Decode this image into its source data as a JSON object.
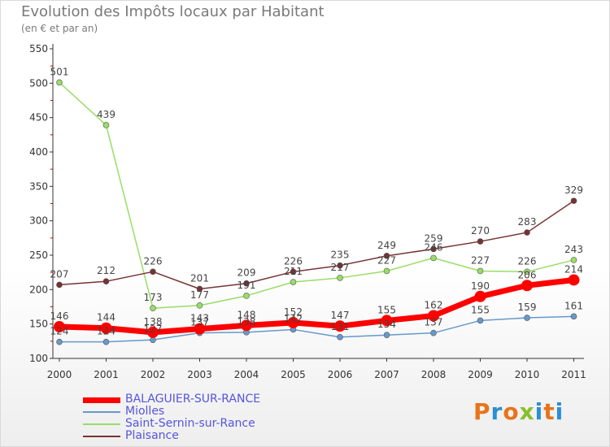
{
  "header": {
    "title": "Evolution des Impôts locaux par Habitant",
    "subtitle": "(en € et par an)"
  },
  "logo": {
    "text": "Proxiti",
    "colors": [
      "#e8731a",
      "#2a8fd4",
      "#e8731a",
      "#89bf2a",
      "#2a8fd4",
      "#e8731a",
      "#2a8fd4"
    ]
  },
  "chart_data": {
    "type": "line",
    "x": [
      "2000",
      "2001",
      "2002",
      "2003",
      "2004",
      "2005",
      "2006",
      "2007",
      "2008",
      "2009",
      "2010",
      "2011"
    ],
    "ylim": [
      100,
      550
    ],
    "yticks": [
      100,
      150,
      200,
      250,
      300,
      350,
      400,
      450,
      500,
      550
    ],
    "grid": false,
    "legend_position": "bottom-left",
    "series": [
      {
        "name": "BALAGUIER-SUR-RANCE",
        "color": "#ff0000",
        "values": [
          146,
          144,
          138,
          143,
          148,
          152,
          147,
          155,
          162,
          190,
          206,
          214
        ]
      },
      {
        "name": "Miolles",
        "color": "#6699cc",
        "values": [
          124,
          124,
          127,
          137,
          138,
          142,
          131,
          134,
          137,
          155,
          159,
          161
        ]
      },
      {
        "name": "Saint-Sernin-sur-Rance",
        "color": "#99dd66",
        "values": [
          501,
          439,
          173,
          177,
          191,
          211,
          217,
          227,
          246,
          227,
          226,
          243
        ]
      },
      {
        "name": "Plaisance",
        "color": "#773333",
        "values": [
          207,
          212,
          226,
          201,
          209,
          226,
          235,
          249,
          259,
          270,
          283,
          329
        ]
      }
    ]
  }
}
